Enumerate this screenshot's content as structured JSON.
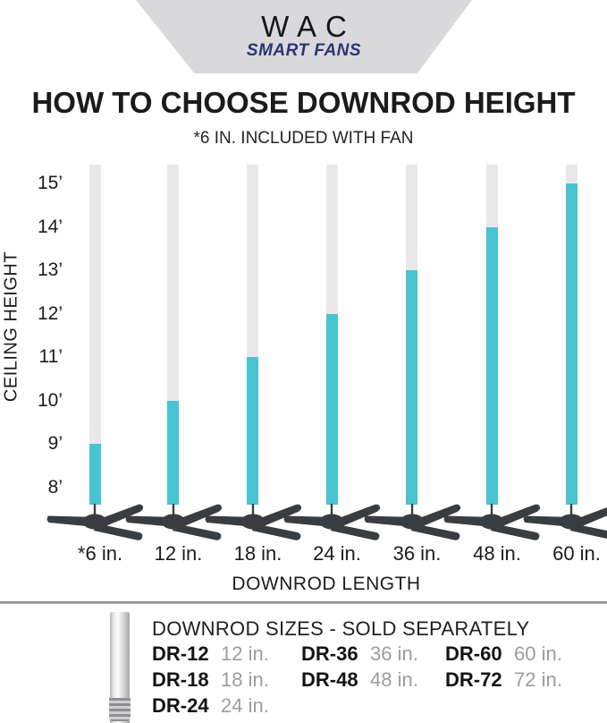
{
  "brand": {
    "name": "WAC",
    "tagline": "SMART FANS"
  },
  "title": "HOW TO CHOOSE DOWNROD HEIGHT",
  "subtitle": "*6 IN. INCLUDED WITH FAN",
  "chart_data": {
    "type": "bar",
    "title": "HOW TO CHOOSE DOWNROD HEIGHT",
    "subtitle": "*6 IN. INCLUDED WITH FAN",
    "xlabel": "DOWNROD LENGTH",
    "ylabel": "CEILING HEIGHT",
    "categories": [
      "*6 in.",
      "12 in.",
      "18 in.",
      "24 in.",
      "36 in.",
      "48 in.",
      "60 in."
    ],
    "values": [
      9,
      10,
      11,
      12,
      13,
      14,
      15
    ],
    "values_unit": "recommended ceiling height (feet)",
    "y_tick_labels": [
      "15’",
      "14’",
      "13’",
      "12’",
      "11’",
      "10’",
      "9’",
      "8’"
    ],
    "ylim": [
      8,
      15
    ],
    "grid": false,
    "legend": false,
    "marker": "ceiling fan silhouette at base of each rod"
  },
  "colors": {
    "teal_rod": "#47c3d2",
    "gray_rod": "#e8e8ea",
    "fan_silhouette": "#383d42",
    "banner_gray": "#d9d9db",
    "brand_navy": "#2b3575",
    "muted_text": "#9c9c9e"
  },
  "footer": {
    "heading": "DOWNROD SIZES - SOLD SEPARATELY",
    "columns": [
      [
        {
          "code": "DR-12",
          "size": "12 in."
        },
        {
          "code": "DR-18",
          "size": "18 in."
        },
        {
          "code": "DR-24",
          "size": "24 in."
        }
      ],
      [
        {
          "code": "DR-36",
          "size": "36 in."
        },
        {
          "code": "DR-48",
          "size": "48 in."
        }
      ],
      [
        {
          "code": "DR-60",
          "size": "60 in."
        },
        {
          "code": "DR-72",
          "size": "72 in."
        }
      ]
    ]
  }
}
